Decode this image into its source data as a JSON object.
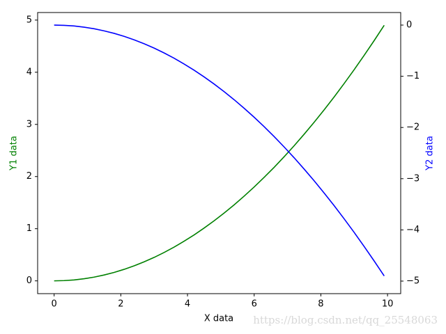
{
  "chart_data": {
    "type": "line",
    "xlabel": "X data",
    "ylabel": "Y1 data",
    "y2label": "Y2 data",
    "ylabel_color": "#008000",
    "y2label_color": "#0000ff",
    "watermark": "https://blog.csdn.net/qq_25548063",
    "x": [
      0,
      0.3,
      0.6,
      0.9,
      1.2,
      1.5,
      1.8,
      2.1,
      2.4,
      2.7,
      3.0,
      3.3,
      3.6,
      3.9,
      4.2,
      4.5,
      4.8,
      5.1,
      5.4,
      5.7,
      6.0,
      6.3,
      6.6,
      6.9,
      7.2,
      7.5,
      7.8,
      8.1,
      8.4,
      8.7,
      9.0,
      9.3,
      9.6,
      9.9
    ],
    "series": [
      {
        "color": "#008000",
        "values": [
          0,
          0.005,
          0.018,
          0.041,
          0.072,
          0.113,
          0.162,
          0.221,
          0.288,
          0.365,
          0.45,
          0.545,
          0.648,
          0.761,
          0.882,
          1.013,
          1.152,
          1.301,
          1.458,
          1.625,
          1.8,
          1.985,
          2.178,
          2.381,
          2.592,
          2.813,
          3.042,
          3.281,
          3.528,
          3.785,
          4.05,
          4.325,
          4.608,
          4.9
        ]
      },
      {
        "color": "#0000ff",
        "axis": "y2",
        "values": [
          0,
          -0.005,
          -0.018,
          -0.041,
          -0.072,
          -0.113,
          -0.162,
          -0.221,
          -0.288,
          -0.365,
          -0.45,
          -0.545,
          -0.648,
          -0.761,
          -0.882,
          -1.013,
          -1.152,
          -1.301,
          -1.458,
          -1.625,
          -1.8,
          -1.985,
          -2.178,
          -2.381,
          -2.592,
          -2.813,
          -3.042,
          -3.281,
          -3.528,
          -3.785,
          -4.05,
          -4.325,
          -4.608,
          -4.9
        ]
      }
    ],
    "xlim": [
      -0.495,
      10.395
    ],
    "xticks": [
      0,
      2,
      4,
      6,
      8,
      10
    ],
    "ylim": [
      -0.245,
      5.145
    ],
    "yticks": [
      0,
      1,
      2,
      3,
      4,
      5
    ],
    "y2lim": [
      -5.245,
      0.245
    ],
    "y2ticks": [
      0,
      {
        "value": -1,
        "label": "−1"
      },
      {
        "value": -2,
        "label": "−2"
      },
      {
        "value": -3,
        "label": "−3"
      },
      {
        "value": -4,
        "label": "−4"
      },
      {
        "value": -5,
        "label": "−5"
      }
    ]
  }
}
